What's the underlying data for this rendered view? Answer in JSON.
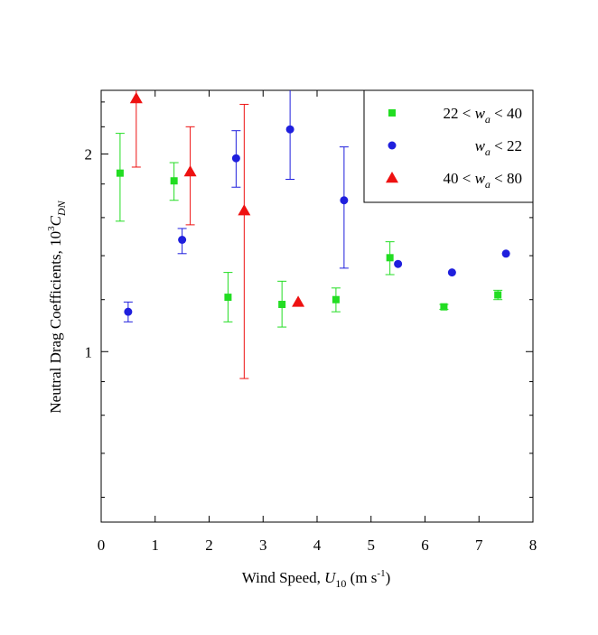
{
  "chart_data": {
    "type": "scatter",
    "title": "",
    "xlabel_parts": [
      "Wind Speed, ",
      "U",
      "10",
      "  (m s",
      "-1",
      ")"
    ],
    "ylabel_parts": [
      "Neutral Drag Coefficients,  10",
      "3",
      "C",
      "DN"
    ],
    "xlim": [
      0,
      8
    ],
    "ylim": [
      0.55,
      2.5
    ],
    "yscale": "log",
    "xticks": [
      0,
      1,
      2,
      3,
      4,
      5,
      6,
      7,
      8
    ],
    "xtick_labels": [
      "0",
      "1",
      "2",
      "3",
      "4",
      "5",
      "6",
      "7",
      "8"
    ],
    "yticks_major": [
      1,
      2
    ],
    "ytick_labels": [
      "1",
      "2"
    ],
    "yticks_minor": [
      0.6,
      0.7,
      0.8,
      0.9,
      1.2,
      1.4,
      1.6,
      1.8,
      2.2,
      2.4
    ],
    "grid": false,
    "legend_position": "top-right",
    "series": [
      {
        "legend_parts": [
          "22 < ",
          "w",
          "a",
          " < 40"
        ],
        "marker": "square",
        "color": "#22dd22",
        "points": [
          {
            "x": 0.35,
            "y": 1.87,
            "ylo": 1.58,
            "yhi": 2.15
          },
          {
            "x": 1.35,
            "y": 1.82,
            "ylo": 1.7,
            "yhi": 1.94
          },
          {
            "x": 2.35,
            "y": 1.21,
            "ylo": 1.11,
            "yhi": 1.32
          },
          {
            "x": 3.35,
            "y": 1.18,
            "ylo": 1.09,
            "yhi": 1.28
          },
          {
            "x": 4.35,
            "y": 1.2,
            "ylo": 1.15,
            "yhi": 1.25
          },
          {
            "x": 5.35,
            "y": 1.39,
            "ylo": 1.31,
            "yhi": 1.47
          },
          {
            "x": 6.35,
            "y": 1.17,
            "ylo": 1.16,
            "yhi": 1.18
          },
          {
            "x": 7.35,
            "y": 1.22,
            "ylo": 1.2,
            "yhi": 1.24
          }
        ]
      },
      {
        "legend_parts": [
          "",
          "w",
          "a",
          " < 22"
        ],
        "marker": "circle",
        "color": "#1f1fdd",
        "points": [
          {
            "x": 0.5,
            "y": 1.15,
            "ylo": 1.11,
            "yhi": 1.19
          },
          {
            "x": 1.5,
            "y": 1.48,
            "ylo": 1.41,
            "yhi": 1.54
          },
          {
            "x": 2.5,
            "y": 1.97,
            "ylo": 1.78,
            "yhi": 2.17
          },
          {
            "x": 3.5,
            "y": 2.18,
            "ylo": 1.83,
            "yhi": 2.5
          },
          {
            "x": 4.5,
            "y": 1.7,
            "ylo": 1.34,
            "yhi": 2.05
          },
          {
            "x": 5.5,
            "y": 1.36
          },
          {
            "x": 6.5,
            "y": 1.32
          },
          {
            "x": 7.5,
            "y": 1.41
          }
        ]
      },
      {
        "legend_parts": [
          "40 < ",
          "w",
          "a",
          " < 80"
        ],
        "marker": "triangle",
        "color": "#ee1111",
        "points": [
          {
            "x": 0.65,
            "y": 2.43,
            "ylo": 1.91,
            "yhi": 2.5
          },
          {
            "x": 1.65,
            "y": 1.88,
            "ylo": 1.56,
            "yhi": 2.2
          },
          {
            "x": 2.65,
            "y": 1.64,
            "ylo": 0.91,
            "yhi": 2.38
          },
          {
            "x": 3.65,
            "y": 1.19
          }
        ]
      }
    ]
  }
}
